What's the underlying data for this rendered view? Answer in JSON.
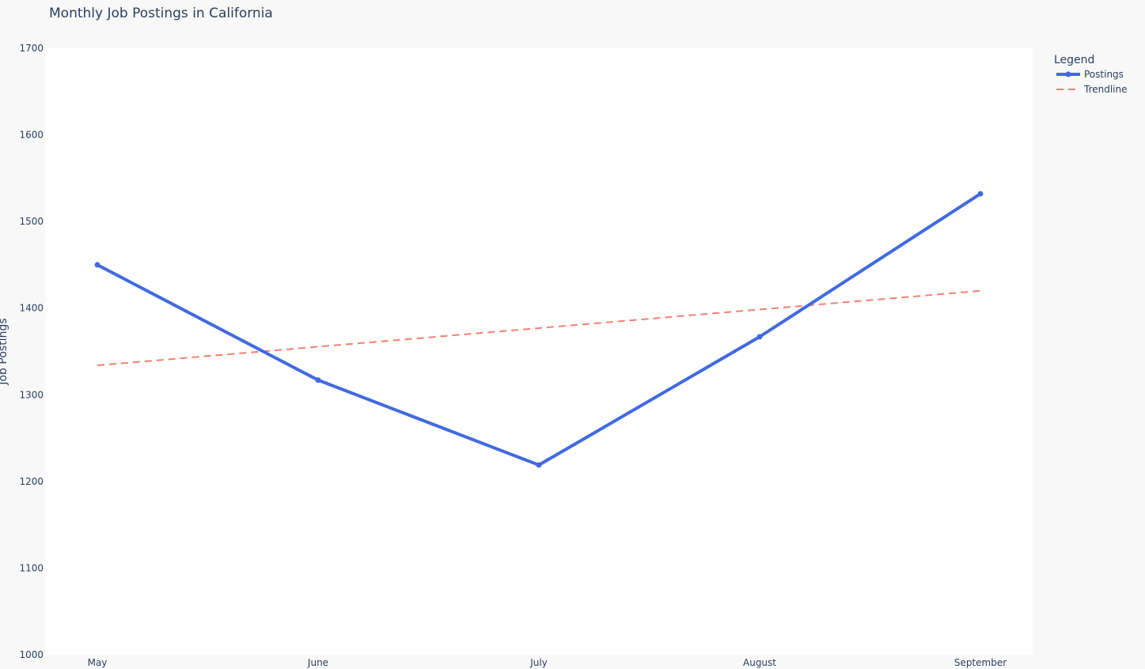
{
  "chart_data": {
    "type": "line",
    "title": "Monthly Job Postings in California",
    "xlabel": "",
    "ylabel": "Job Postings",
    "categories": [
      "May",
      "June",
      "July",
      "August",
      "September"
    ],
    "ylim": [
      1000,
      1700
    ],
    "yticks": [
      1000,
      1100,
      1200,
      1300,
      1400,
      1500,
      1600,
      1700
    ],
    "grid": false,
    "legend": {
      "title": "Legend",
      "position": "top-right"
    },
    "series": [
      {
        "name": "Postings",
        "style": "solid-markers",
        "color": "#4169e1",
        "values": [
          1450,
          1317,
          1219,
          1367,
          1532
        ]
      },
      {
        "name": "Trendline",
        "style": "dashed",
        "color": "#f08070",
        "values": [
          1334,
          1355.5,
          1377,
          1398.5,
          1420
        ]
      }
    ]
  }
}
